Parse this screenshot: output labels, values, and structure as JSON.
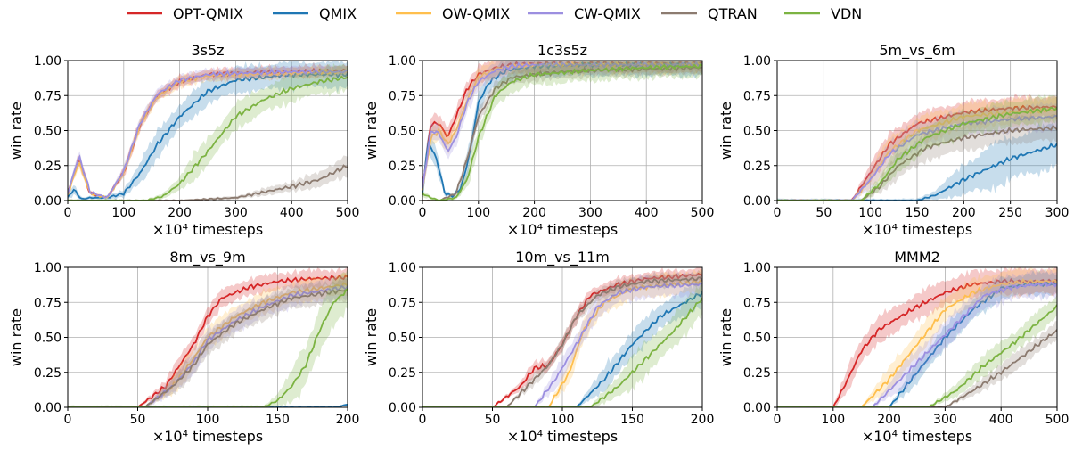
{
  "legend": [
    {
      "name": "OPT-QMIX",
      "color": "#d62728"
    },
    {
      "name": "QMIX",
      "color": "#1f77b4"
    },
    {
      "name": "OW-QMIX",
      "color": "#ffbf4d"
    },
    {
      "name": "CW-QMIX",
      "color": "#9c8fe0"
    },
    {
      "name": "QTRAN",
      "color": "#8c7b70"
    },
    {
      "name": "VDN",
      "color": "#7cb342"
    }
  ],
  "chart_data": [
    {
      "type": "line",
      "title": "3s5z",
      "ylabel": "win rate",
      "xlabel": "×10⁴ timesteps",
      "xlim": [
        0,
        500
      ],
      "ylim": [
        0,
        1
      ],
      "xticks": [
        0,
        100,
        200,
        300,
        400,
        500
      ],
      "yticks": [
        "0.00",
        "0.25",
        "0.50",
        "0.75",
        "1.00"
      ],
      "grid": true,
      "series": [
        {
          "name": "OPT-QMIX",
          "x": [
            0,
            20,
            40,
            70,
            100,
            130,
            160,
            200,
            250,
            300,
            400,
            500
          ],
          "y": [
            0.05,
            0.3,
            0.05,
            0.02,
            0.2,
            0.55,
            0.75,
            0.85,
            0.9,
            0.91,
            0.92,
            0.93
          ],
          "band": 0.05
        },
        {
          "name": "QMIX",
          "x": [
            0,
            10,
            25,
            40,
            70,
            100,
            130,
            160,
            200,
            250,
            300,
            400,
            500
          ],
          "y": [
            0.02,
            0.08,
            0.01,
            0.02,
            0.02,
            0.05,
            0.2,
            0.4,
            0.6,
            0.78,
            0.86,
            0.9,
            0.9
          ],
          "band": 0.12
        },
        {
          "name": "OW-QMIX",
          "x": [
            0,
            20,
            40,
            70,
            100,
            130,
            160,
            200,
            250,
            300,
            400,
            500
          ],
          "y": [
            0.04,
            0.28,
            0.05,
            0.02,
            0.2,
            0.55,
            0.74,
            0.85,
            0.89,
            0.9,
            0.91,
            0.92
          ],
          "band": 0.05
        },
        {
          "name": "CW-QMIX",
          "x": [
            0,
            20,
            40,
            70,
            100,
            130,
            160,
            200,
            250,
            300,
            400,
            500
          ],
          "y": [
            0.05,
            0.32,
            0.06,
            0.02,
            0.21,
            0.56,
            0.76,
            0.86,
            0.9,
            0.91,
            0.92,
            0.92
          ],
          "band": 0.05
        },
        {
          "name": "QTRAN",
          "x": [
            0,
            200,
            300,
            350,
            400,
            450,
            500
          ],
          "y": [
            0,
            0,
            0.02,
            0.06,
            0.1,
            0.15,
            0.25
          ],
          "band": 0.1
        },
        {
          "name": "VDN",
          "x": [
            0,
            140,
            170,
            200,
            250,
            300,
            350,
            400,
            450,
            500
          ],
          "y": [
            0,
            0,
            0.03,
            0.12,
            0.35,
            0.6,
            0.72,
            0.8,
            0.85,
            0.88
          ],
          "band": 0.12
        }
      ]
    },
    {
      "type": "line",
      "title": "1c3s5z",
      "ylabel": "win rate",
      "xlabel": "×10⁴ timesteps",
      "xlim": [
        0,
        500
      ],
      "ylim": [
        0,
        1
      ],
      "xticks": [
        0,
        100,
        200,
        300,
        400,
        500
      ],
      "yticks": [
        "0.00",
        "0.25",
        "0.50",
        "0.75",
        "1.00"
      ],
      "grid": true,
      "series": [
        {
          "name": "OPT-QMIX",
          "x": [
            0,
            15,
            30,
            45,
            60,
            80,
            100,
            130,
            160,
            200,
            300,
            400,
            500
          ],
          "y": [
            0.1,
            0.55,
            0.55,
            0.45,
            0.6,
            0.8,
            0.9,
            0.95,
            0.97,
            0.98,
            0.98,
            0.98,
            0.98
          ],
          "band": 0.08
        },
        {
          "name": "QMIX",
          "x": [
            0,
            10,
            25,
            40,
            55,
            70,
            85,
            100,
            120,
            150,
            200,
            300,
            500
          ],
          "y": [
            0.05,
            0.42,
            0.3,
            0.05,
            0.03,
            0.1,
            0.35,
            0.7,
            0.85,
            0.93,
            0.96,
            0.97,
            0.97
          ],
          "band": 0.1
        },
        {
          "name": "OW-QMIX",
          "x": [
            0,
            15,
            30,
            45,
            60,
            80,
            100,
            130,
            160,
            200,
            300,
            400,
            500
          ],
          "y": [
            0.08,
            0.45,
            0.5,
            0.4,
            0.5,
            0.72,
            0.88,
            0.94,
            0.96,
            0.97,
            0.97,
            0.97,
            0.97
          ],
          "band": 0.08
        },
        {
          "name": "CW-QMIX",
          "x": [
            0,
            15,
            30,
            45,
            60,
            80,
            100,
            130,
            160,
            200,
            300,
            400,
            500
          ],
          "y": [
            0.08,
            0.5,
            0.48,
            0.35,
            0.45,
            0.7,
            0.85,
            0.93,
            0.96,
            0.97,
            0.97,
            0.97,
            0.97
          ],
          "band": 0.08
        },
        {
          "name": "QTRAN",
          "x": [
            0,
            30,
            60,
            80,
            100,
            130,
            160,
            200,
            250,
            300,
            400,
            500
          ],
          "y": [
            0,
            0,
            0.05,
            0.3,
            0.6,
            0.8,
            0.88,
            0.9,
            0.92,
            0.93,
            0.94,
            0.95
          ],
          "band": 0.06
        },
        {
          "name": "VDN",
          "x": [
            0,
            15,
            30,
            60,
            80,
            100,
            130,
            160,
            200,
            300,
            400,
            500
          ],
          "y": [
            0.05,
            0.02,
            0.0,
            0.02,
            0.15,
            0.45,
            0.75,
            0.85,
            0.9,
            0.93,
            0.95,
            0.96
          ],
          "band": 0.1
        }
      ]
    },
    {
      "type": "line",
      "title": "5m_vs_6m",
      "ylabel": "win rate",
      "xlabel": "×10⁴ timesteps",
      "xlim": [
        0,
        300
      ],
      "ylim": [
        0,
        1
      ],
      "xticks": [
        0,
        50,
        100,
        150,
        200,
        250,
        300
      ],
      "yticks": [
        "0.00",
        "0.25",
        "0.50",
        "0.75",
        "1.00"
      ],
      "grid": true,
      "series": [
        {
          "name": "OPT-QMIX",
          "x": [
            0,
            80,
            100,
            120,
            150,
            200,
            250,
            300
          ],
          "y": [
            0,
            0,
            0.2,
            0.4,
            0.55,
            0.63,
            0.66,
            0.67
          ],
          "band": 0.1
        },
        {
          "name": "QMIX",
          "x": [
            0,
            150,
            170,
            200,
            250,
            300
          ],
          "y": [
            0,
            0,
            0.04,
            0.15,
            0.3,
            0.4
          ],
          "band": 0.2
        },
        {
          "name": "OW-QMIX",
          "x": [
            0,
            80,
            100,
            120,
            150,
            200,
            250,
            300
          ],
          "y": [
            0,
            0,
            0.15,
            0.35,
            0.5,
            0.6,
            0.63,
            0.65
          ],
          "band": 0.12
        },
        {
          "name": "CW-QMIX",
          "x": [
            0,
            80,
            100,
            120,
            150,
            200,
            250,
            300
          ],
          "y": [
            0,
            0,
            0.15,
            0.33,
            0.47,
            0.55,
            0.58,
            0.6
          ],
          "band": 0.12
        },
        {
          "name": "QTRAN",
          "x": [
            0,
            90,
            110,
            130,
            160,
            200,
            250,
            300
          ],
          "y": [
            0,
            0,
            0.1,
            0.25,
            0.38,
            0.45,
            0.5,
            0.52
          ],
          "band": 0.12
        },
        {
          "name": "VDN",
          "x": [
            0,
            90,
            110,
            130,
            160,
            200,
            250,
            300
          ],
          "y": [
            0,
            0,
            0.12,
            0.3,
            0.45,
            0.55,
            0.62,
            0.66
          ],
          "band": 0.12
        }
      ]
    },
    {
      "type": "line",
      "title": "8m_vs_9m",
      "ylabel": "win rate",
      "xlabel": "×10⁴ timesteps",
      "xlim": [
        0,
        200
      ],
      "ylim": [
        0,
        1
      ],
      "xticks": [
        0,
        50,
        100,
        150,
        200
      ],
      "yticks": [
        "0.00",
        "0.25",
        "0.50",
        "0.75",
        "1.00"
      ],
      "grid": true,
      "series": [
        {
          "name": "OPT-QMIX",
          "x": [
            0,
            50,
            70,
            90,
            100,
            110,
            130,
            150,
            175,
            200
          ],
          "y": [
            0,
            0,
            0.15,
            0.45,
            0.65,
            0.78,
            0.86,
            0.9,
            0.92,
            0.93
          ],
          "band": 0.08
        },
        {
          "name": "QMIX",
          "x": [
            0,
            190,
            200
          ],
          "y": [
            0,
            0,
            0.02
          ],
          "band": 0.05
        },
        {
          "name": "OW-QMIX",
          "x": [
            0,
            55,
            75,
            90,
            100,
            120,
            140,
            160,
            200
          ],
          "y": [
            0,
            0,
            0.15,
            0.35,
            0.5,
            0.65,
            0.75,
            0.82,
            0.88
          ],
          "band": 0.1
        },
        {
          "name": "CW-QMIX",
          "x": [
            0,
            55,
            75,
            90,
            100,
            120,
            140,
            160,
            200
          ],
          "y": [
            0,
            0,
            0.15,
            0.32,
            0.48,
            0.62,
            0.72,
            0.8,
            0.86
          ],
          "band": 0.1
        },
        {
          "name": "QTRAN",
          "x": [
            0,
            55,
            75,
            90,
            100,
            120,
            140,
            160,
            200
          ],
          "y": [
            0,
            0,
            0.15,
            0.3,
            0.45,
            0.6,
            0.7,
            0.78,
            0.84
          ],
          "band": 0.1
        },
        {
          "name": "VDN",
          "x": [
            0,
            140,
            150,
            160,
            170,
            180,
            190,
            200
          ],
          "y": [
            0,
            0,
            0.05,
            0.15,
            0.3,
            0.55,
            0.75,
            0.84
          ],
          "band": 0.2
        }
      ]
    },
    {
      "type": "line",
      "title": "10m_vs_11m",
      "ylabel": "win rate",
      "xlabel": "×10⁴ timesteps",
      "xlim": [
        0,
        200
      ],
      "ylim": [
        0,
        1
      ],
      "xticks": [
        0,
        50,
        100,
        150,
        200
      ],
      "yticks": [
        "0.00",
        "0.25",
        "0.50",
        "0.75",
        "1.00"
      ],
      "grid": true,
      "series": [
        {
          "name": "OPT-QMIX",
          "x": [
            0,
            50,
            70,
            80,
            90,
            100,
            110,
            120,
            140,
            160,
            200
          ],
          "y": [
            0,
            0,
            0.15,
            0.28,
            0.3,
            0.45,
            0.65,
            0.8,
            0.88,
            0.92,
            0.95
          ],
          "band": 0.06
        },
        {
          "name": "QMIX",
          "x": [
            0,
            110,
            130,
            150,
            170,
            200
          ],
          "y": [
            0,
            0,
            0.2,
            0.45,
            0.65,
            0.82
          ],
          "band": 0.12
        },
        {
          "name": "OW-QMIX",
          "x": [
            0,
            90,
            105,
            115,
            130,
            150,
            200
          ],
          "y": [
            0,
            0,
            0.25,
            0.55,
            0.75,
            0.85,
            0.9
          ],
          "band": 0.1
        },
        {
          "name": "CW-QMIX",
          "x": [
            0,
            80,
            95,
            110,
            125,
            140,
            160,
            200
          ],
          "y": [
            0,
            0,
            0.2,
            0.45,
            0.72,
            0.82,
            0.86,
            0.88
          ],
          "band": 0.1
        },
        {
          "name": "QTRAN",
          "x": [
            0,
            60,
            75,
            90,
            100,
            110,
            125,
            140,
            160,
            200
          ],
          "y": [
            0,
            0,
            0.15,
            0.3,
            0.45,
            0.65,
            0.8,
            0.86,
            0.9,
            0.92
          ],
          "band": 0.06
        },
        {
          "name": "VDN",
          "x": [
            0,
            120,
            140,
            160,
            180,
            200
          ],
          "y": [
            0,
            0,
            0.15,
            0.35,
            0.55,
            0.78
          ],
          "band": 0.15
        }
      ]
    },
    {
      "type": "line",
      "title": "MMM2",
      "ylabel": "win rate",
      "xlabel": "×10⁴ timesteps",
      "xlim": [
        0,
        500
      ],
      "ylim": [
        0,
        1
      ],
      "xticks": [
        0,
        100,
        200,
        300,
        400,
        500
      ],
      "yticks": [
        "0.00",
        "0.25",
        "0.50",
        "0.75",
        "1.00"
      ],
      "grid": true,
      "series": [
        {
          "name": "OPT-QMIX",
          "x": [
            0,
            100,
            120,
            150,
            180,
            200,
            250,
            300,
            350,
            400,
            450,
            500
          ],
          "y": [
            0,
            0,
            0.15,
            0.4,
            0.55,
            0.6,
            0.72,
            0.82,
            0.88,
            0.9,
            0.9,
            0.9
          ],
          "band": 0.12
        },
        {
          "name": "QMIX",
          "x": [
            0,
            200,
            250,
            300,
            350,
            400,
            450,
            500
          ],
          "y": [
            0,
            0,
            0.25,
            0.5,
            0.7,
            0.85,
            0.88,
            0.88
          ],
          "band": 0.1
        },
        {
          "name": "OW-QMIX",
          "x": [
            0,
            150,
            200,
            250,
            300,
            350,
            400,
            450,
            500
          ],
          "y": [
            0,
            0,
            0.2,
            0.45,
            0.7,
            0.82,
            0.88,
            0.9,
            0.9
          ],
          "band": 0.12
        },
        {
          "name": "CW-QMIX",
          "x": [
            0,
            170,
            220,
            270,
            320,
            370,
            420,
            470,
            500
          ],
          "y": [
            0,
            0,
            0.2,
            0.4,
            0.6,
            0.8,
            0.86,
            0.88,
            0.88
          ],
          "band": 0.12
        },
        {
          "name": "QTRAN",
          "x": [
            0,
            300,
            350,
            400,
            450,
            500
          ],
          "y": [
            0,
            0,
            0.12,
            0.25,
            0.4,
            0.55
          ],
          "band": 0.08
        },
        {
          "name": "VDN",
          "x": [
            0,
            270,
            320,
            370,
            420,
            470,
            500
          ],
          "y": [
            0,
            0,
            0.12,
            0.3,
            0.45,
            0.62,
            0.72
          ],
          "band": 0.1
        }
      ]
    }
  ]
}
